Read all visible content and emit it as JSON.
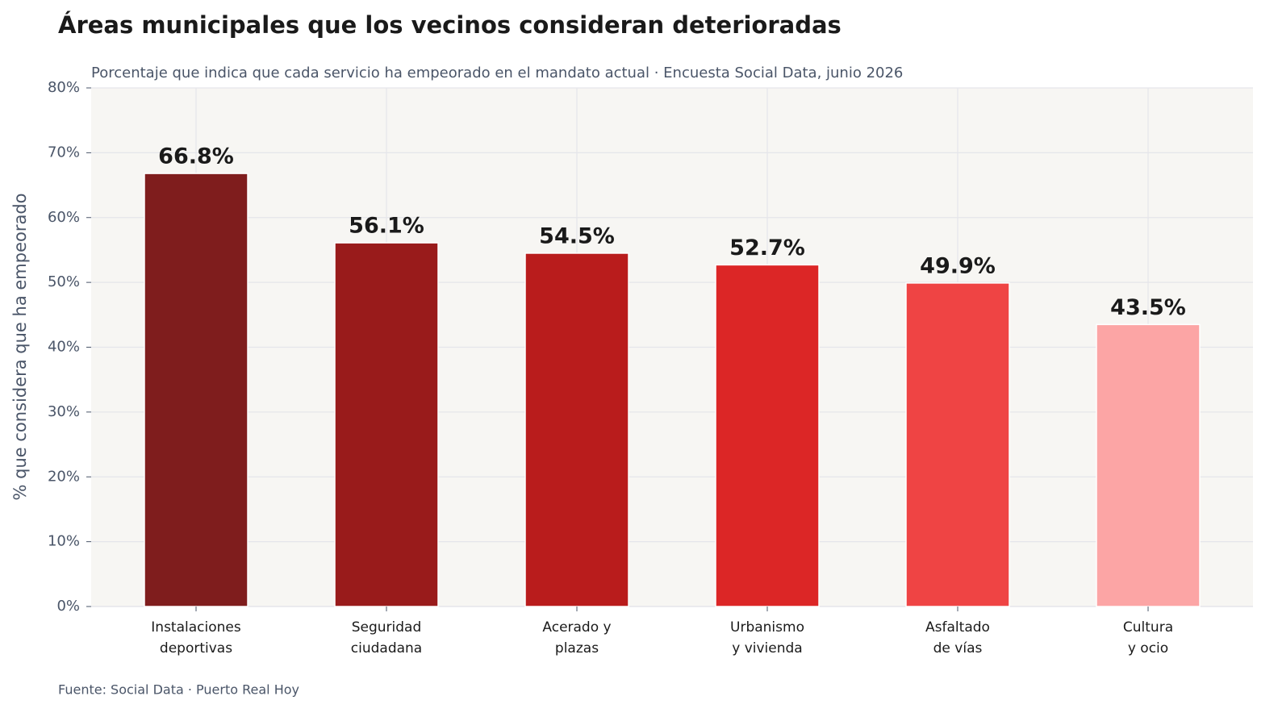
{
  "chart_data": {
    "type": "bar",
    "title": "Áreas municipales que los vecinos consideran deterioradas",
    "subtitle": "Porcentaje que indica que cada servicio ha empeorado en el mandato actual · Encuesta Social Data, junio 2026",
    "y_label": "% que considera que ha empeorado",
    "source": "Fuente: Social Data · Puerto Real Hoy",
    "categories": [
      "Instalaciones\ndeportivas",
      "Seguridad\nciudadana",
      "Acerado y\nplazas",
      "Urbanismo\ny vivienda",
      "Asfaltado\nde vías",
      "Cultura\ny ocio"
    ],
    "values": [
      66.8,
      56.1,
      54.5,
      52.7,
      49.9,
      43.5
    ],
    "value_labels": [
      "66.8%",
      "56.1%",
      "54.5%",
      "52.7%",
      "49.9%",
      "43.5%"
    ],
    "colors": [
      "#7f1d1d",
      "#991b1b",
      "#b91c1c",
      "#dc2626",
      "#ef4444",
      "#fca5a5"
    ],
    "ylim": [
      0,
      80
    ],
    "yticks": [
      {
        "value": 0,
        "label": "0%"
      },
      {
        "value": 10,
        "label": "10%"
      },
      {
        "value": 20,
        "label": "20%"
      },
      {
        "value": 30,
        "label": "30%"
      },
      {
        "value": 40,
        "label": "40%"
      },
      {
        "value": 50,
        "label": "50%"
      },
      {
        "value": 60,
        "label": "60%"
      },
      {
        "value": 70,
        "label": "70%"
      },
      {
        "value": 80,
        "label": "80%"
      }
    ],
    "grid": true
  }
}
